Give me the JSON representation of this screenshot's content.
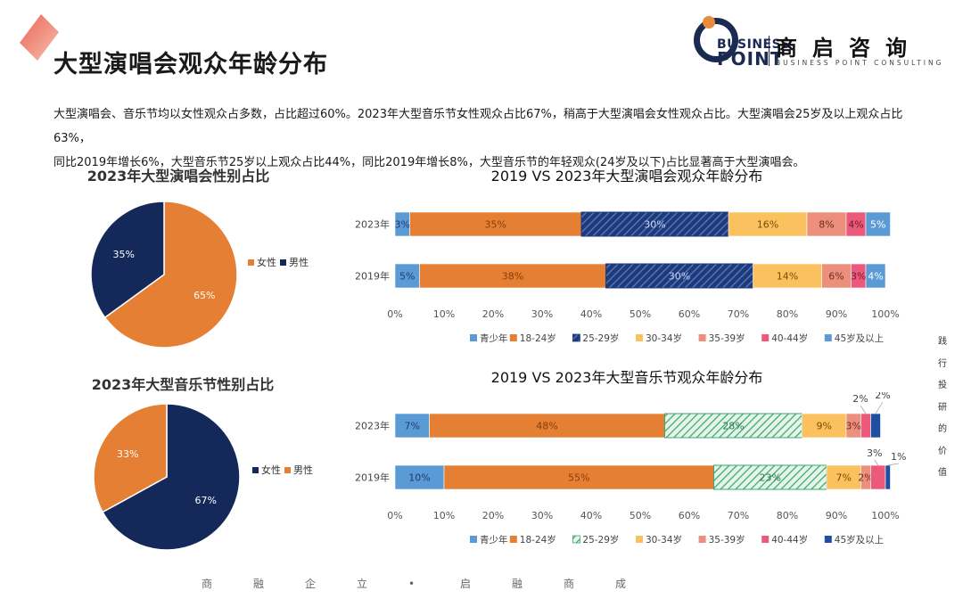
{
  "page": {
    "title": "大型演唱会观众年龄分布",
    "summary_line1": "大型演唱会、音乐节均以女性观众占多数，占比超过60%。2023年大型音乐节女性观众占比67%，稍高于大型演唱会女性观众占比。大型演唱会25岁及以上观众占比63%，",
    "summary_line2": "同比2019年增长6%，大型音乐节25岁以上观众占比44%，同比2019年增长8%，大型音乐节的年轻观众(24岁及以下)占比显著高于大型演唱会。",
    "side_text": [
      "践",
      "行",
      "投",
      "研",
      "的",
      "价",
      "值"
    ],
    "footer": [
      "商",
      "融",
      "企",
      "立",
      "•",
      "启",
      "融",
      "商",
      "成"
    ]
  },
  "logo": {
    "business": "BUSINESS",
    "point": "POINT",
    "cn": "商启咨询",
    "en": "BUSINESS POINT CONSULTING"
  },
  "colors": {
    "orange": "#e57f34",
    "navy": "#14295a",
    "teen": "#5b9bd5",
    "age_25_29": "#2e9e5b",
    "age_30_34": "#fbc15e",
    "age_35_39": "#ec8f7c",
    "age_40_44": "#eb5a7a",
    "age_45_plus": "#1f4fa0",
    "accent_deco": "#e9533f"
  },
  "chart_data": [
    {
      "type": "pie",
      "title": "2023年大型演唱会性别占比",
      "slices": [
        {
          "name": "女性",
          "value": 65,
          "label": "65%"
        },
        {
          "name": "男性",
          "value": 35,
          "label": "35%"
        }
      ],
      "legend": [
        "女性",
        "男性"
      ]
    },
    {
      "type": "pie",
      "title": "2023年大型音乐节性别占比",
      "slices": [
        {
          "name": "女性",
          "value": 67,
          "label": "67%"
        },
        {
          "name": "男性",
          "value": 33,
          "label": "33%"
        }
      ],
      "legend": [
        "女性",
        "男性"
      ]
    },
    {
      "type": "bar",
      "orientation": "horizontal-stacked-100",
      "title": "2019 VS 2023年大型演唱会观众年龄分布",
      "categories": [
        "2023年",
        "2019年"
      ],
      "xlim": [
        0,
        100
      ],
      "xticks": [
        "0%",
        "10%",
        "20%",
        "30%",
        "40%",
        "50%",
        "60%",
        "70%",
        "80%",
        "90%",
        "100%"
      ],
      "legend_position": "bottom",
      "series": [
        {
          "name": "青少年",
          "values": [
            3,
            5
          ]
        },
        {
          "name": "18-24岁",
          "values": [
            35,
            38
          ]
        },
        {
          "name": "25-29岁",
          "values": [
            30,
            30
          ]
        },
        {
          "name": "30-34岁",
          "values": [
            16,
            14
          ]
        },
        {
          "name": "35-39岁",
          "values": [
            8,
            6
          ]
        },
        {
          "name": "40-44岁",
          "values": [
            4,
            3
          ]
        },
        {
          "name": "45岁及以上",
          "values": [
            5,
            4
          ]
        }
      ]
    },
    {
      "type": "bar",
      "orientation": "horizontal-stacked-100",
      "title": "2019 VS 2023年大型音乐节观众年龄分布",
      "categories": [
        "2023年",
        "2019年"
      ],
      "xlim": [
        0,
        100
      ],
      "xticks": [
        "0%",
        "10%",
        "20%",
        "30%",
        "40%",
        "50%",
        "60%",
        "70%",
        "80%",
        "90%",
        "100%"
      ],
      "legend_position": "bottom",
      "series": [
        {
          "name": "青少年",
          "values": [
            7,
            10
          ]
        },
        {
          "name": "18-24岁",
          "values": [
            48,
            55
          ]
        },
        {
          "name": "25-29岁",
          "values": [
            28,
            23
          ]
        },
        {
          "name": "30-34岁",
          "values": [
            9,
            7
          ]
        },
        {
          "name": "35-39岁",
          "values": [
            3,
            2
          ]
        },
        {
          "name": "40-44岁",
          "values": [
            2,
            3
          ]
        },
        {
          "name": "45岁及以上",
          "values": [
            2,
            1
          ]
        }
      ]
    }
  ]
}
